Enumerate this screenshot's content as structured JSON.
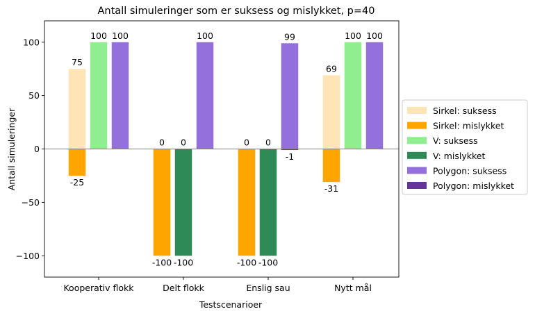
{
  "chart_data": {
    "type": "bar",
    "title": "Antall simuleringer som er suksess og mislykket, p=40",
    "xlabel": "Testscenarioer",
    "ylabel": "Antall simuleringer",
    "ylim": [
      -120,
      120
    ],
    "yticks": [
      100,
      50,
      0,
      -50,
      -100
    ],
    "ytick_labels": [
      "100",
      "50",
      "0",
      "−50",
      "−100"
    ],
    "categories": [
      "Kooperativ flokk",
      "Delt flokk",
      "Enslig sau",
      "Nytt mål"
    ],
    "zero_line": true,
    "grid": false,
    "legend_position": "right (outside plot)",
    "groups": [
      {
        "name": "Sirkel",
        "success_color": "#ffe4b5",
        "fail_color": "#ffa500",
        "success_values": [
          75,
          0,
          0,
          69
        ],
        "fail_values": [
          -25,
          -100,
          -100,
          -31
        ]
      },
      {
        "name": "V",
        "success_color": "#90ee90",
        "fail_color": "#2e8b57",
        "success_values": [
          100,
          0,
          0,
          100
        ],
        "fail_values": [
          0,
          -100,
          -100,
          0
        ]
      },
      {
        "name": "Polygon",
        "success_color": "#9370db",
        "fail_color": "#663399",
        "success_values": [
          100,
          100,
          99,
          100
        ],
        "fail_values": [
          0,
          0,
          -1,
          0
        ]
      }
    ],
    "legend": [
      {
        "label": "Sirkel: suksess",
        "color": "#ffe4b5"
      },
      {
        "label": "Sirkel: mislykket",
        "color": "#ffa500"
      },
      {
        "label": "V: suksess",
        "color": "#90ee90"
      },
      {
        "label": "V: mislykket",
        "color": "#2e8b57"
      },
      {
        "label": "Polygon: suksess",
        "color": "#9370db"
      },
      {
        "label": "Polygon: mislykket",
        "color": "#663399"
      }
    ]
  }
}
